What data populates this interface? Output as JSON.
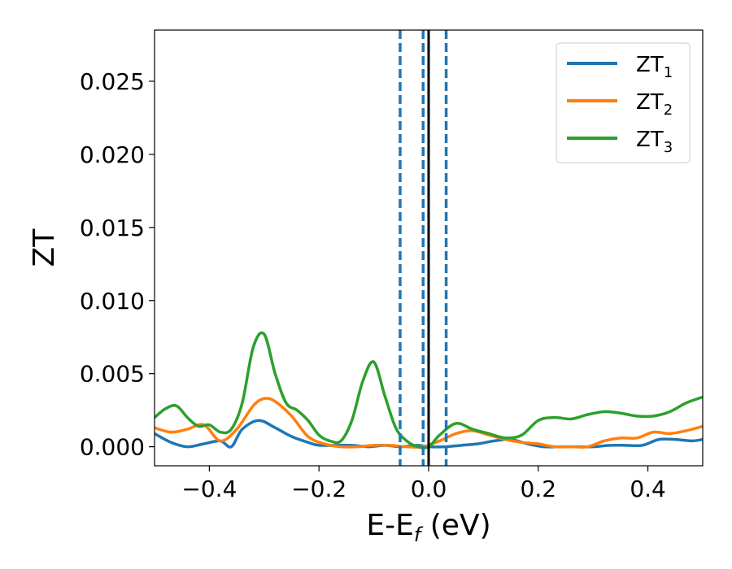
{
  "chart_data": {
    "type": "line",
    "xlabel_main": "E-E",
    "xlabel_sub": "f",
    "xlabel_tail": " (eV)",
    "ylabel": "ZT",
    "xlim": [
      -0.5,
      0.5
    ],
    "ylim": [
      -0.0013,
      0.0285
    ],
    "xticks": [
      -0.4,
      -0.2,
      0.0,
      0.2,
      0.4
    ],
    "xtick_labels": [
      "−0.4",
      "−0.2",
      "0.0",
      "0.2",
      "0.4"
    ],
    "yticks": [
      0.0,
      0.005,
      0.01,
      0.015,
      0.02,
      0.025
    ],
    "ytick_labels": [
      "0.000",
      "0.005",
      "0.010",
      "0.015",
      "0.020",
      "0.025"
    ],
    "grid": false,
    "legend_position": "top-right",
    "vlines": [
      {
        "x": -0.052,
        "style": "dashed",
        "color": "#1f77b4"
      },
      {
        "x": -0.01,
        "style": "dashed",
        "color": "#1f77b4"
      },
      {
        "x": 0.032,
        "style": "dashed",
        "color": "#1f77b4"
      },
      {
        "x": 0.0,
        "style": "solid",
        "color": "#000000"
      }
    ],
    "series": [
      {
        "name": "ZT",
        "subscript": "1",
        "color": "#1f77b4",
        "x": [
          -0.5,
          -0.47,
          -0.44,
          -0.41,
          -0.38,
          -0.36,
          -0.34,
          -0.31,
          -0.28,
          -0.25,
          -0.22,
          -0.2,
          -0.17,
          -0.14,
          -0.11,
          -0.08,
          -0.05,
          -0.02,
          0.0,
          0.03,
          0.06,
          0.09,
          0.12,
          0.15,
          0.18,
          0.21,
          0.24,
          0.27,
          0.3,
          0.33,
          0.36,
          0.39,
          0.42,
          0.45,
          0.48,
          0.5
        ],
        "y": [
          0.0009,
          0.0003,
          0.0,
          0.0002,
          0.0004,
          0.0,
          0.0012,
          0.0018,
          0.0013,
          0.0007,
          0.0003,
          0.0001,
          0.0001,
          0.0001,
          0.0,
          0.0001,
          0.0,
          0.0001,
          0.0,
          0.0,
          0.0001,
          0.0002,
          0.0004,
          0.0005,
          0.0002,
          0.0,
          0.0,
          0.0,
          0.0,
          0.0001,
          0.0001,
          0.0001,
          0.0005,
          0.0005,
          0.0004,
          0.0005
        ]
      },
      {
        "name": "ZT",
        "subscript": "2",
        "color": "#ff7f0e",
        "x": [
          -0.5,
          -0.47,
          -0.44,
          -0.41,
          -0.38,
          -0.35,
          -0.32,
          -0.3,
          -0.28,
          -0.25,
          -0.22,
          -0.19,
          -0.16,
          -0.13,
          -0.1,
          -0.07,
          -0.04,
          -0.01,
          0.02,
          0.05,
          0.08,
          0.11,
          0.14,
          0.17,
          0.2,
          0.23,
          0.26,
          0.29,
          0.32,
          0.35,
          0.38,
          0.41,
          0.44,
          0.47,
          0.5
        ],
        "y": [
          0.0013,
          0.001,
          0.0012,
          0.0015,
          0.0004,
          0.0012,
          0.0028,
          0.0033,
          0.0031,
          0.0021,
          0.0007,
          0.0002,
          0.0,
          0.0,
          0.0001,
          0.0001,
          0.0,
          0.0,
          0.0004,
          0.0009,
          0.0011,
          0.0008,
          0.0005,
          0.0003,
          0.0002,
          0.0,
          0.0,
          0.0,
          0.0004,
          0.0006,
          0.0006,
          0.001,
          0.0009,
          0.0011,
          0.0014
        ]
      },
      {
        "name": "ZT",
        "subscript": "3",
        "color": "#2ca02c",
        "x": [
          -0.5,
          -0.48,
          -0.46,
          -0.44,
          -0.42,
          -0.4,
          -0.38,
          -0.36,
          -0.34,
          -0.32,
          -0.3,
          -0.28,
          -0.26,
          -0.24,
          -0.22,
          -0.2,
          -0.18,
          -0.16,
          -0.14,
          -0.12,
          -0.1,
          -0.08,
          -0.06,
          -0.04,
          -0.02,
          0.0,
          0.02,
          0.05,
          0.08,
          0.11,
          0.14,
          0.17,
          0.2,
          0.23,
          0.26,
          0.29,
          0.32,
          0.35,
          0.38,
          0.41,
          0.44,
          0.47,
          0.5
        ],
        "y": [
          0.002,
          0.0026,
          0.0028,
          0.002,
          0.0014,
          0.0015,
          0.001,
          0.0012,
          0.003,
          0.0068,
          0.0077,
          0.005,
          0.003,
          0.0025,
          0.0018,
          0.0008,
          0.0004,
          0.0004,
          0.0018,
          0.0045,
          0.0058,
          0.0035,
          0.0013,
          0.0004,
          0.0,
          0.0,
          0.0008,
          0.0016,
          0.0012,
          0.0009,
          0.0006,
          0.0008,
          0.0018,
          0.002,
          0.0019,
          0.0022,
          0.0024,
          0.0023,
          0.0021,
          0.0021,
          0.0024,
          0.003,
          0.0034
        ]
      }
    ]
  }
}
